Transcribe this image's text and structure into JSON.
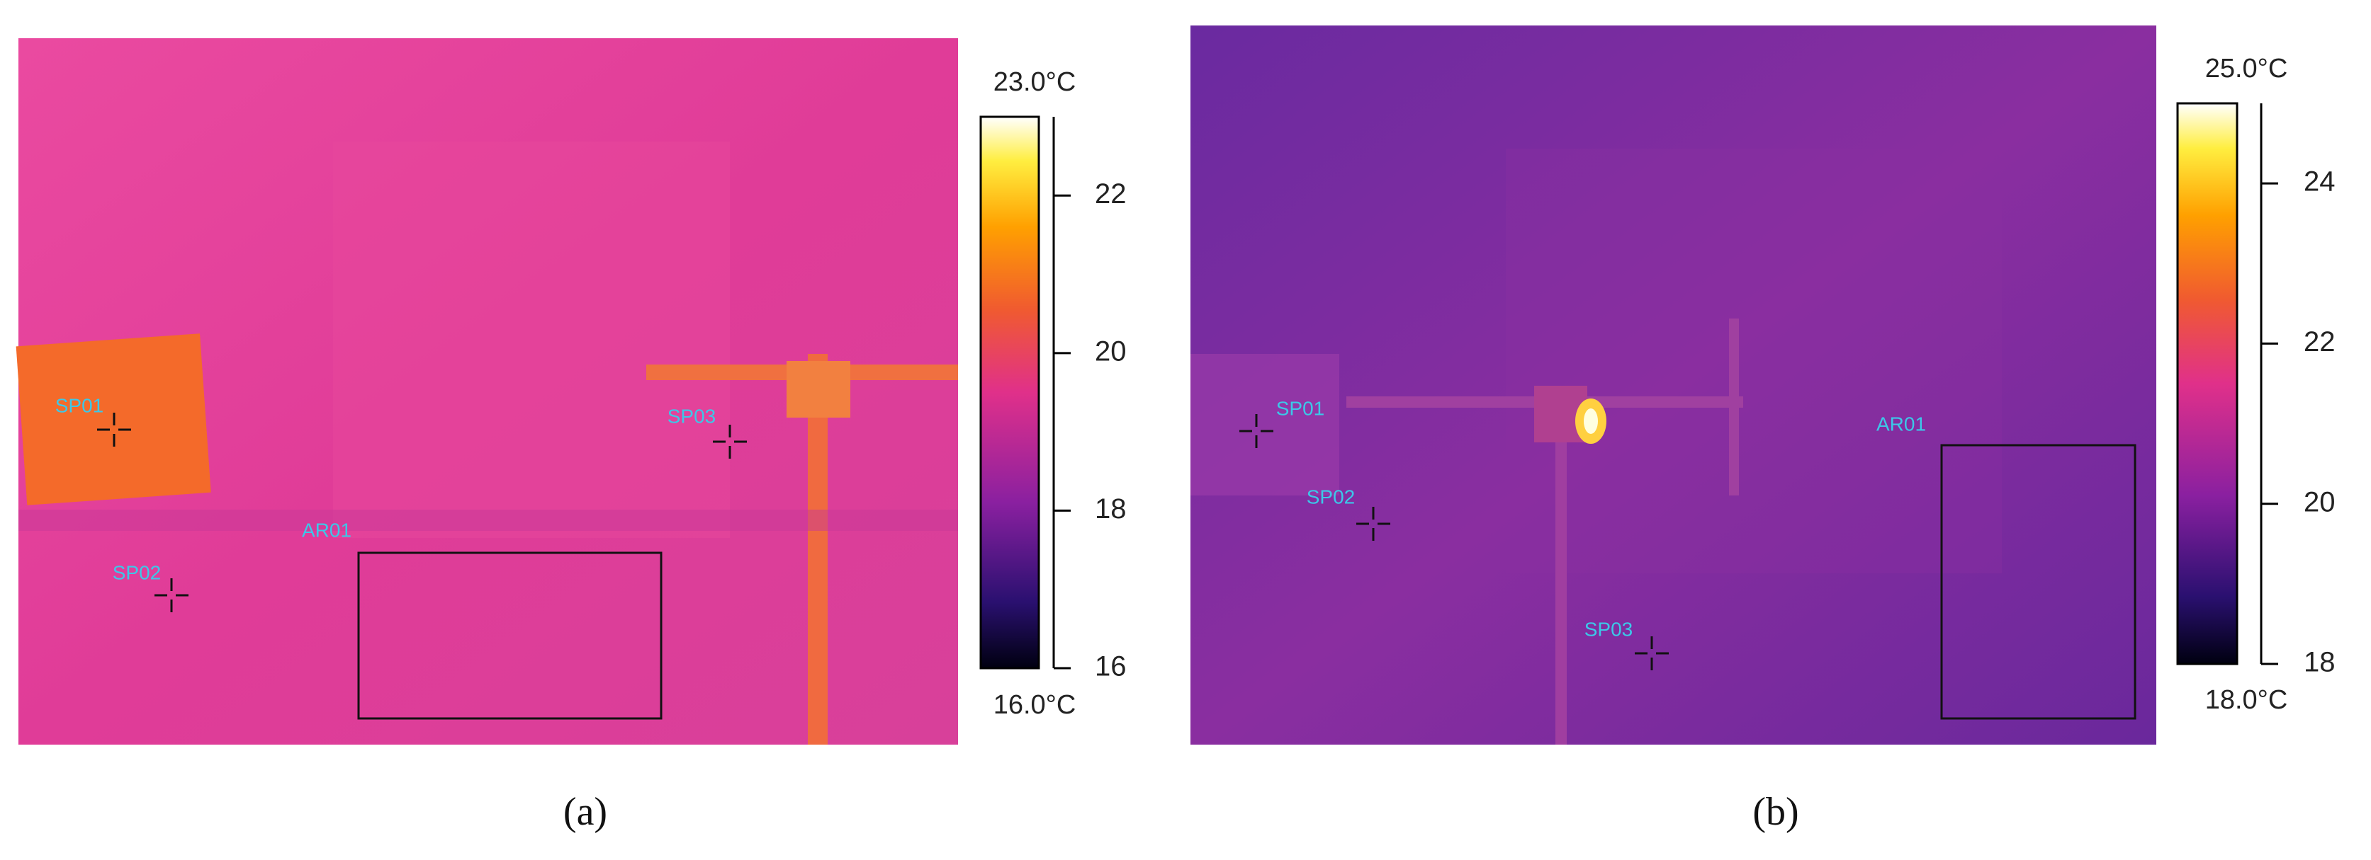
{
  "panels": [
    {
      "label": "(a)",
      "colorbar": {
        "max_label": "23.0°C",
        "min_label": "16.0°C",
        "range": [
          16,
          23
        ],
        "ticks": [
          16,
          18,
          20,
          22
        ]
      },
      "markers": [
        {
          "label": "SP01"
        },
        {
          "label": "SP02"
        },
        {
          "label": "SP03"
        }
      ],
      "area": {
        "label": "AR01"
      }
    },
    {
      "label": "(b)",
      "colorbar": {
        "max_label": "25.0°C",
        "min_label": "18.0°C",
        "range": [
          18,
          25
        ],
        "ticks": [
          18,
          20,
          22,
          24
        ]
      },
      "markers": [
        {
          "label": "SP01"
        },
        {
          "label": "SP02"
        },
        {
          "label": "SP03"
        }
      ],
      "area": {
        "label": "AR01"
      }
    }
  ]
}
